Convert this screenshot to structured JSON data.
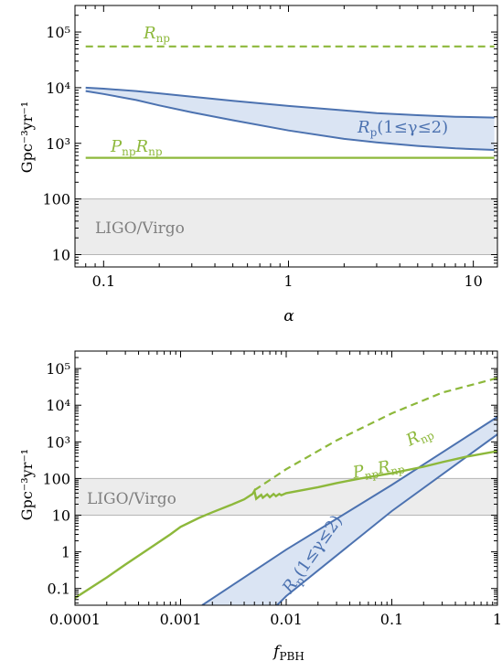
{
  "chart_data": [
    {
      "type": "line",
      "xscale": "log",
      "yscale": "log",
      "xlabel": "α",
      "ylabel": "Gpc⁻³yr⁻¹",
      "xlim": [
        0.07,
        13.5
      ],
      "ylim": [
        6,
        300000
      ],
      "xticks": [
        0.1,
        1,
        10
      ],
      "xtick_labels": [
        "0.1",
        "1",
        "10"
      ],
      "yticks": [
        10,
        100,
        1000,
        10000,
        100000
      ],
      "ytick_labels": [
        "10",
        "100",
        "10³",
        "10⁴",
        "10⁵"
      ],
      "band": {
        "label": "LIGO/Virgo",
        "range": [
          10,
          100
        ],
        "color": "#ececec"
      },
      "series": [
        {
          "name": "R_np",
          "style": "dashed",
          "color": "#8db83b",
          "x": [
            0.08,
            13
          ],
          "y": [
            55000,
            55000
          ]
        },
        {
          "name": "P_np R_np",
          "style": "solid",
          "color": "#8db83b",
          "x": [
            0.08,
            13
          ],
          "y": [
            550,
            550
          ]
        },
        {
          "name": "R_p(1≤γ≤2)",
          "style": "band",
          "color": "#4c72b0",
          "fill": "#dae4f3",
          "x": [
            0.08,
            0.1,
            0.15,
            0.2,
            0.3,
            0.5,
            1,
            2,
            3,
            5,
            8,
            13
          ],
          "upper": [
            10000,
            9600,
            8700,
            7900,
            6900,
            5800,
            4700,
            3900,
            3500,
            3200,
            3000,
            2900
          ],
          "lower": [
            8700,
            7700,
            6000,
            4800,
            3600,
            2600,
            1700,
            1200,
            1040,
            900,
            810,
            760
          ]
        }
      ],
      "annotations": [
        {
          "base": "R",
          "sub": "np",
          "color": "#8db83b"
        },
        {
          "base1": "P",
          "sub1": "np",
          "base2": "R",
          "sub2": "np",
          "color": "#8db83b"
        },
        {
          "base": "R",
          "sub": "p",
          "rest": "(1≤γ≤2)",
          "color": "#4c72b0"
        },
        {
          "text": "LIGO/Virgo",
          "color": "#7f7f7f"
        }
      ]
    },
    {
      "type": "line",
      "xscale": "log",
      "yscale": "log",
      "xlabel": "f_PBH",
      "ylabel": "Gpc⁻³yr⁻¹",
      "xlim": [
        0.0001,
        1
      ],
      "ylim": [
        0.035,
        300000
      ],
      "xticks": [
        0.0001,
        0.001,
        0.01,
        0.1,
        1
      ],
      "xtick_labels": [
        "0.0001",
        "0.001",
        "0.01",
        "0.1",
        "1"
      ],
      "yticks": [
        0.1,
        1,
        10,
        100,
        1000,
        10000,
        100000
      ],
      "ytick_labels": [
        "0.1",
        "1",
        "10",
        "100",
        "10³",
        "10⁴",
        "10⁵"
      ],
      "band": {
        "label": "LIGO/Virgo",
        "range": [
          10,
          100
        ],
        "color": "#ececec"
      },
      "series": [
        {
          "name": "R_np",
          "style": "dashed",
          "color": "#8db83b",
          "x": [
            0.005,
            0.01,
            0.03,
            0.1,
            0.3,
            1
          ],
          "y": [
            48,
            180,
            1100,
            6000,
            22000,
            55000
          ]
        },
        {
          "name": "P_np R_np",
          "style": "solid",
          "color": "#8db83b",
          "x": [
            0.0001,
            0.0002,
            0.0003,
            0.0005,
            0.0008,
            0.001,
            0.0015,
            0.002,
            0.003,
            0.004,
            0.0048,
            0.005,
            0.0052,
            0.0058,
            0.006,
            0.0066,
            0.007,
            0.0076,
            0.008,
            0.0086,
            0.009,
            0.01,
            0.02,
            0.03,
            0.05,
            0.1,
            0.2,
            0.3,
            0.5,
            1
          ],
          "y": [
            0.055,
            0.2,
            0.45,
            1.2,
            3.0,
            4.8,
            8.5,
            12,
            19,
            27,
            38,
            46,
            28,
            36,
            30,
            37,
            31,
            38,
            33,
            38,
            35,
            40,
            58,
            75,
            100,
            140,
            210,
            280,
            390,
            560
          ]
        },
        {
          "name": "R_p(1≤γ≤2)",
          "style": "band",
          "color": "#4c72b0",
          "fill": "#dae4f3",
          "upper": {
            "x": [
              0.0016,
              0.01,
              0.1,
              1
            ],
            "y": [
              0.035,
              1.15,
              67,
              4800
            ]
          },
          "lower": {
            "x": [
              0.0082,
              0.01,
              0.1,
              1
            ],
            "y": [
              0.035,
              0.062,
              13,
              1600
            ]
          }
        }
      ],
      "annotations": [
        {
          "base": "R",
          "sub": "np",
          "color": "#8db83b"
        },
        {
          "base1": "P",
          "sub1": "np",
          "base2": "R",
          "sub2": "np",
          "color": "#8db83b"
        },
        {
          "base": "R",
          "sub": "p",
          "rest": "(1≤γ≤2)",
          "color": "#4c72b0"
        },
        {
          "text": "LIGO/Virgo",
          "color": "#7f7f7f"
        }
      ]
    }
  ]
}
